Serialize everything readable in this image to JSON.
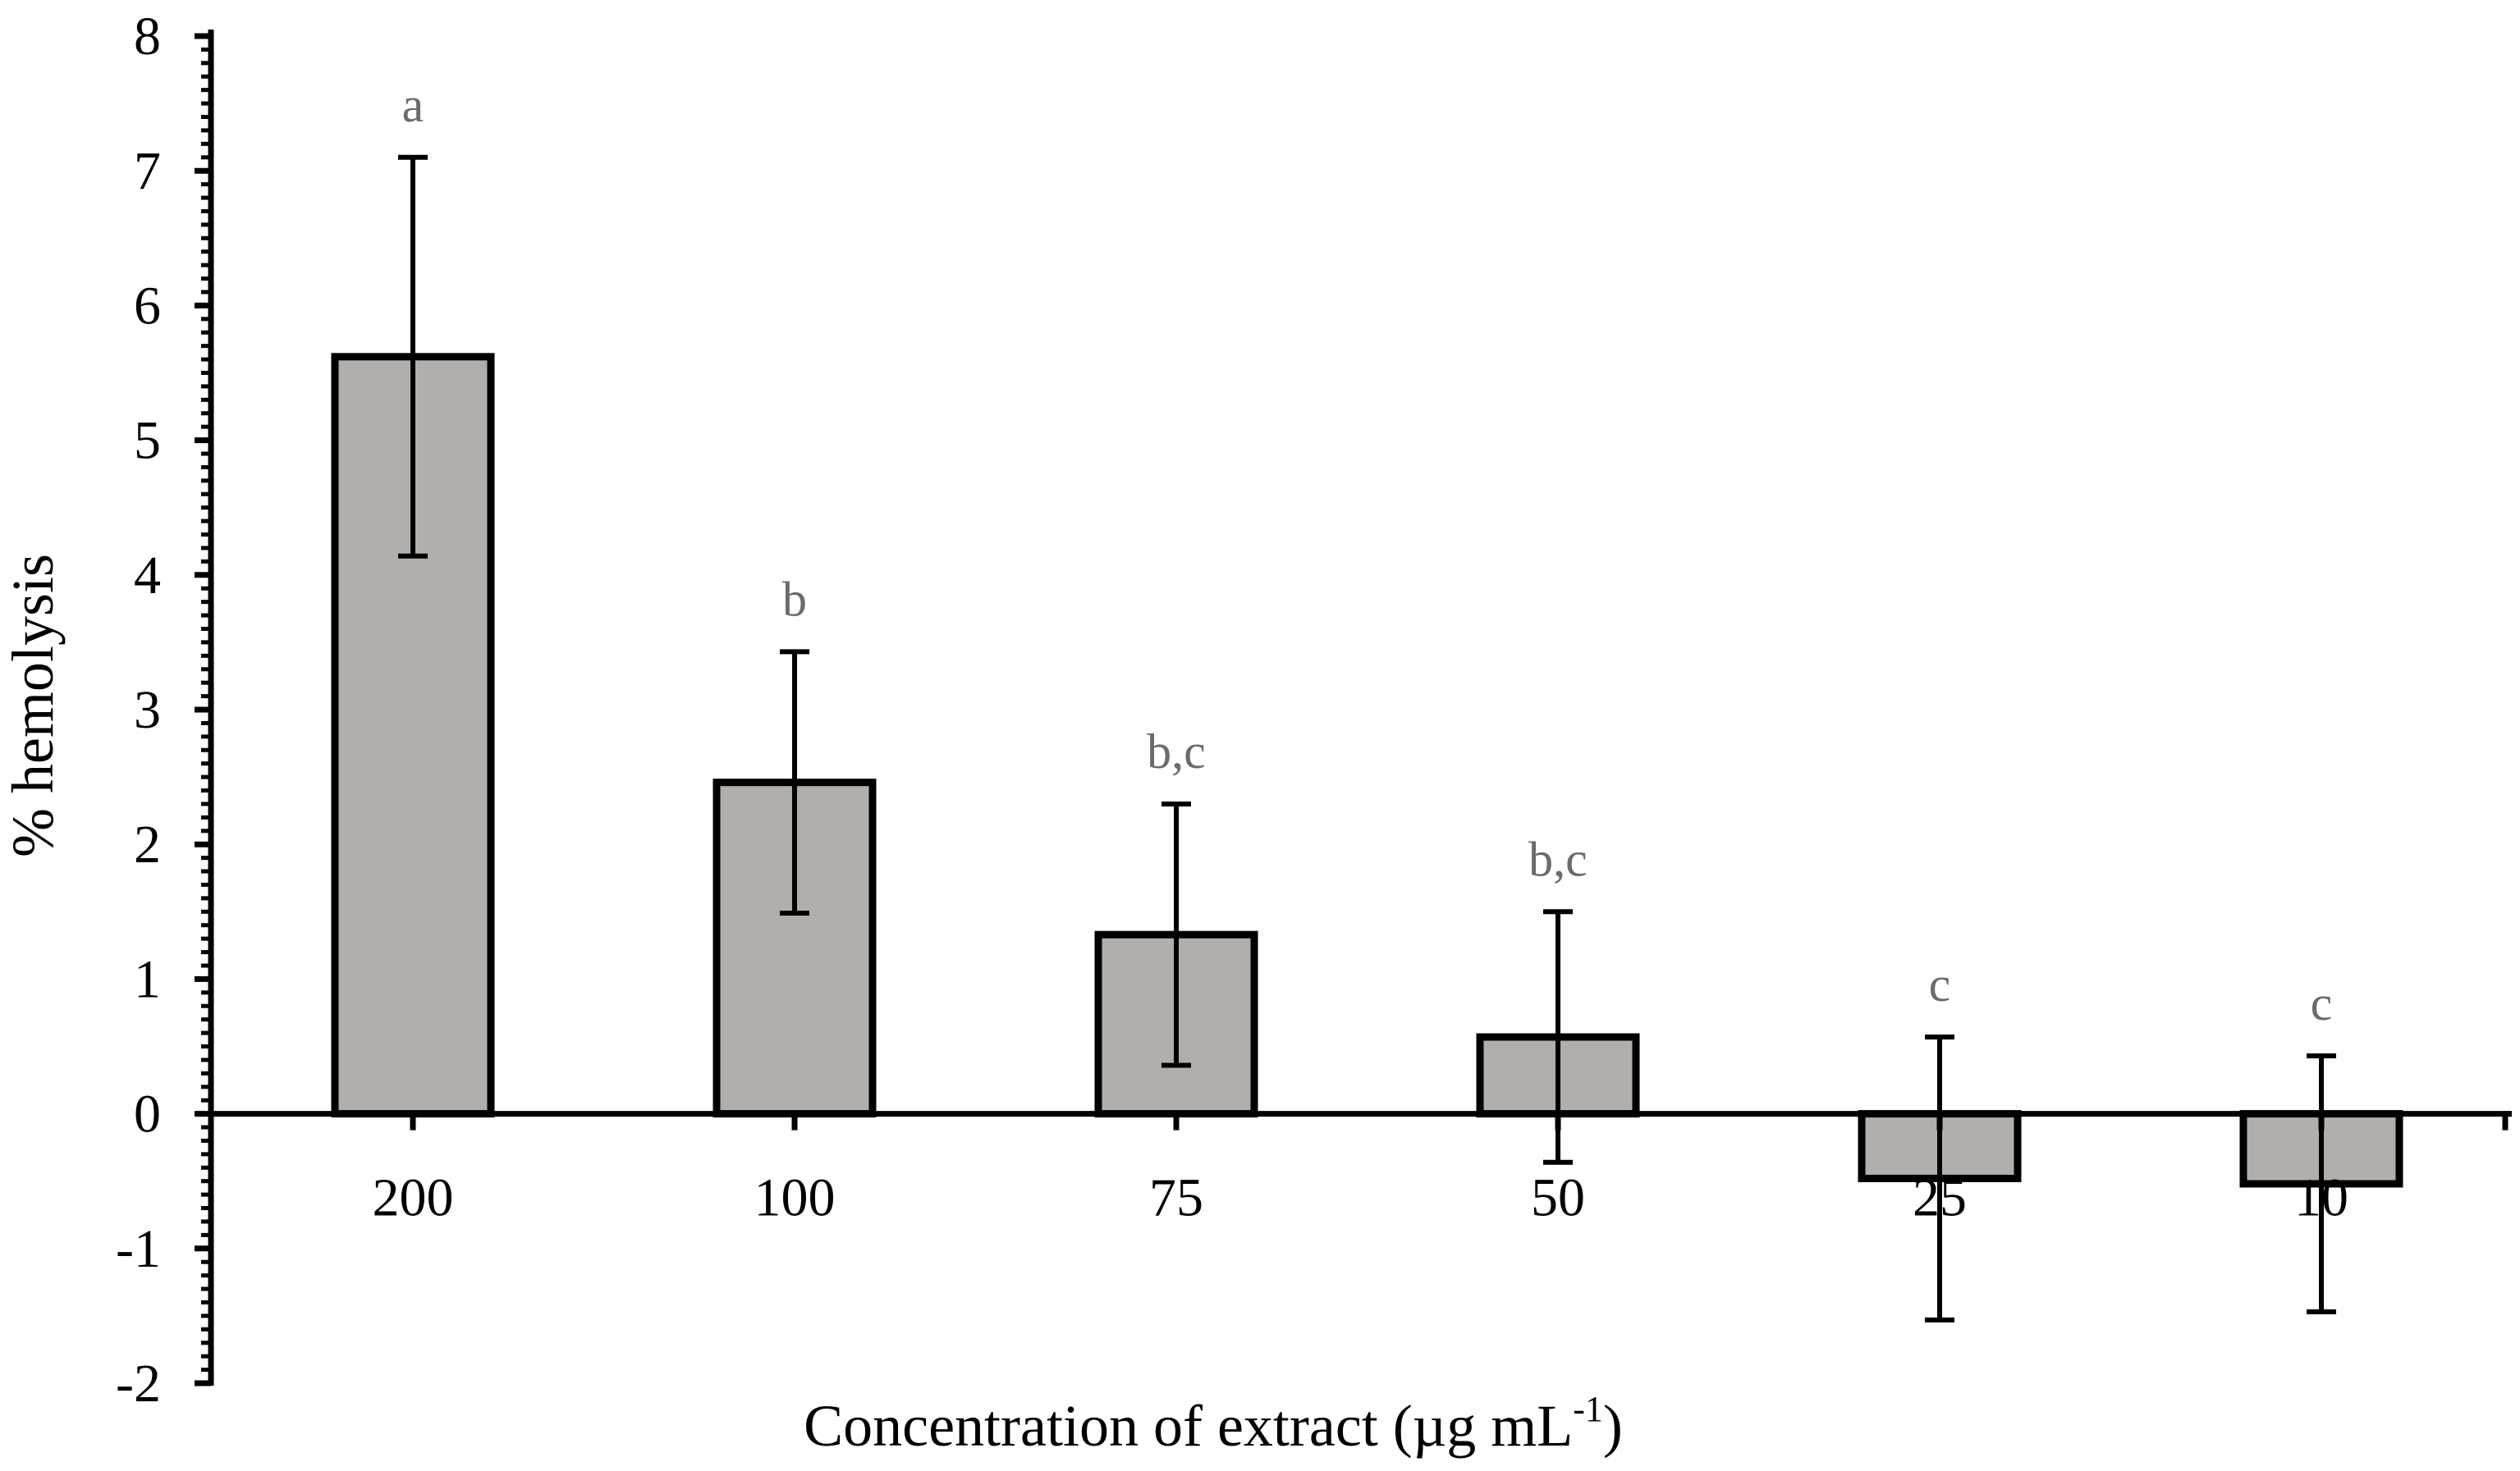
{
  "chart_data": {
    "type": "bar",
    "title": "",
    "xlabel": "Concentration of extract (µg mL",
    "xlabel_superscript": "-1",
    "xlabel_suffix": ")",
    "ylabel": "% hemolysis",
    "ylim": [
      -2,
      8
    ],
    "yticks": [
      "-2",
      "-1",
      "0",
      "1",
      "2",
      "3",
      "4",
      "5",
      "6",
      "7",
      "8"
    ],
    "categories": [
      "200",
      "100",
      "75",
      "50",
      "25",
      "10"
    ],
    "values": [
      5.62,
      2.46,
      1.33,
      0.57,
      -0.48,
      -0.52
    ],
    "error": [
      1.48,
      0.97,
      0.97,
      0.93,
      1.05,
      0.95
    ],
    "significance_labels": [
      "a",
      "b",
      "b,c",
      "b,c",
      "c",
      "c"
    ],
    "grid": false,
    "legend": "none",
    "colors": {
      "bar_fill": "#b2aeab",
      "bar_stroke": "#000000",
      "sig_label": "#6b6b6b"
    }
  }
}
